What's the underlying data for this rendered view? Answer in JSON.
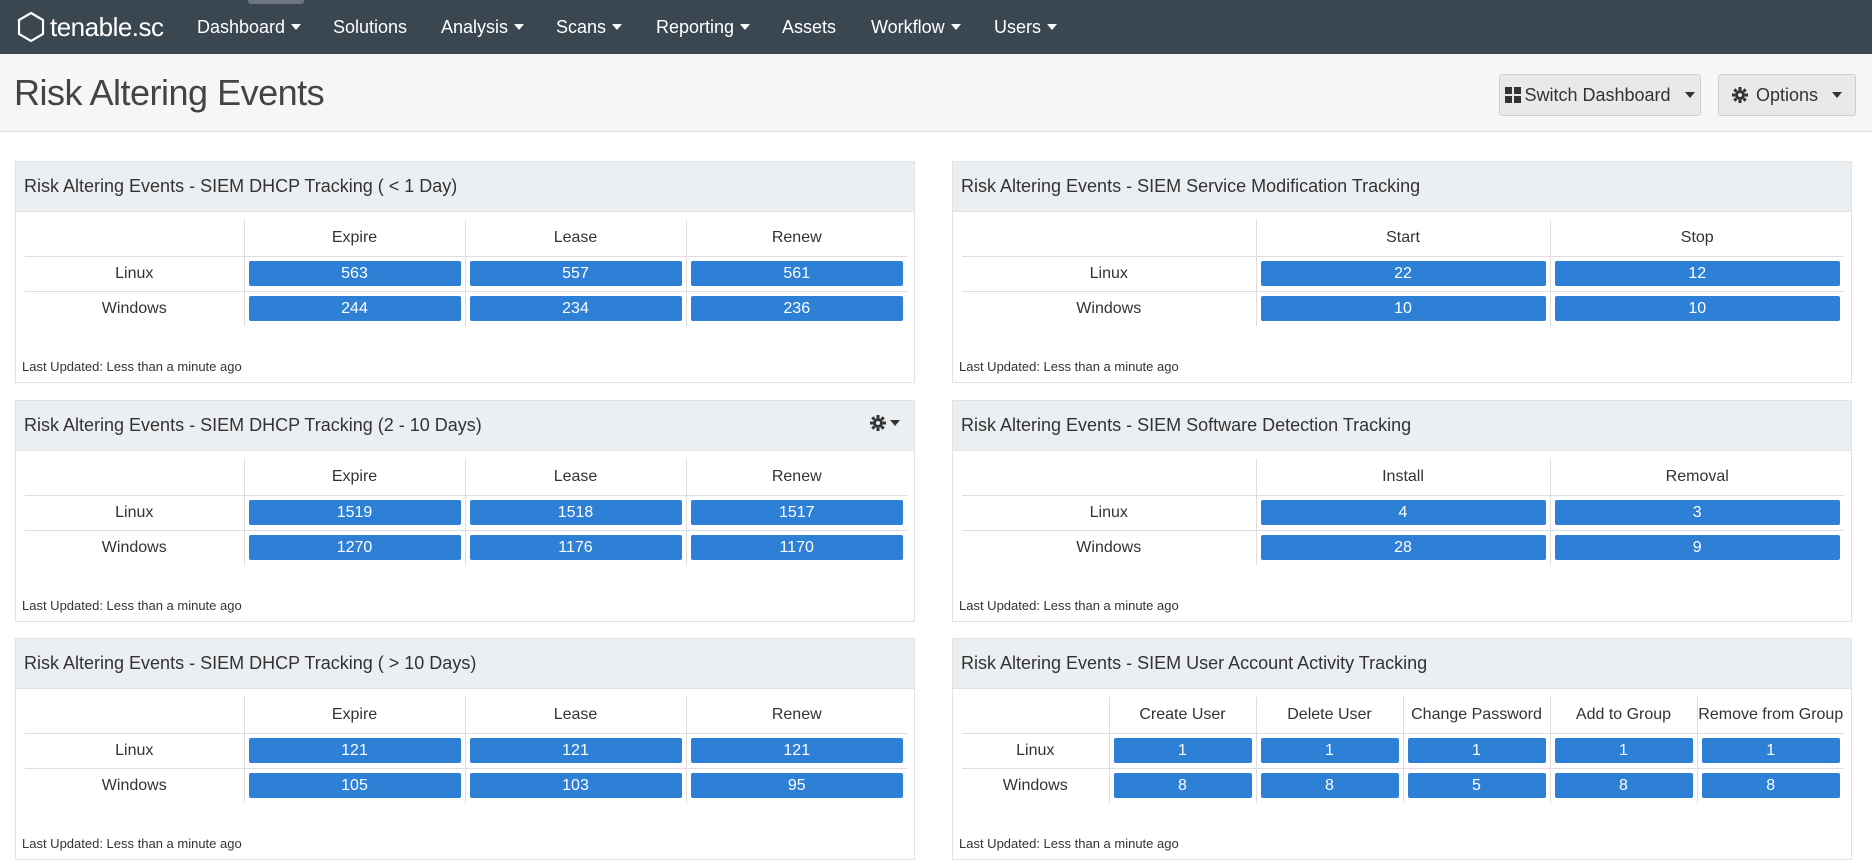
{
  "nav": {
    "logo_text": "tenable.sc",
    "items": [
      {
        "label": "Dashboard",
        "dropdown": true
      },
      {
        "label": "Solutions",
        "dropdown": false
      },
      {
        "label": "Analysis",
        "dropdown": true
      },
      {
        "label": "Scans",
        "dropdown": true
      },
      {
        "label": "Reporting",
        "dropdown": true
      },
      {
        "label": "Assets",
        "dropdown": false
      },
      {
        "label": "Workflow",
        "dropdown": true
      },
      {
        "label": "Users",
        "dropdown": true
      }
    ]
  },
  "header": {
    "title": "Risk Altering Events",
    "switch_label": "Switch Dashboard",
    "options_label": "Options"
  },
  "colors": {
    "navbar": "#3a4650",
    "value_button": "#2e7fd6",
    "panel_header": "#eceff1"
  },
  "panels": [
    {
      "title": "Risk Altering Events - SIEM DHCP Tracking ( < 1 Day)",
      "columns": [
        "Expire",
        "Lease",
        "Renew"
      ],
      "rows": [
        {
          "label": "Linux",
          "values": [
            "563",
            "557",
            "561"
          ]
        },
        {
          "label": "Windows",
          "values": [
            "244",
            "234",
            "236"
          ]
        }
      ],
      "updated": "Last Updated: Less than a minute ago"
    },
    {
      "title": "Risk Altering Events - SIEM Service Modification Tracking",
      "columns": [
        "Start",
        "Stop"
      ],
      "rows": [
        {
          "label": "Linux",
          "values": [
            "22",
            "12"
          ]
        },
        {
          "label": "Windows",
          "values": [
            "10",
            "10"
          ]
        }
      ],
      "updated": "Last Updated: Less than a minute ago"
    },
    {
      "title": "Risk Altering Events - SIEM DHCP Tracking (2 - 10 Days)",
      "columns": [
        "Expire",
        "Lease",
        "Renew"
      ],
      "rows": [
        {
          "label": "Linux",
          "values": [
            "1519",
            "1518",
            "1517"
          ]
        },
        {
          "label": "Windows",
          "values": [
            "1270",
            "1176",
            "1170"
          ]
        }
      ],
      "updated": "Last Updated: Less than a minute ago",
      "gear_icon": "gear-icon"
    },
    {
      "title": "Risk Altering Events - SIEM Software Detection Tracking",
      "columns": [
        "Install",
        "Removal"
      ],
      "rows": [
        {
          "label": "Linux",
          "values": [
            "4",
            "3"
          ]
        },
        {
          "label": "Windows",
          "values": [
            "28",
            "9"
          ]
        }
      ],
      "updated": "Last Updated: Less than a minute ago"
    },
    {
      "title": "Risk Altering Events - SIEM DHCP Tracking ( > 10 Days)",
      "columns": [
        "Expire",
        "Lease",
        "Renew"
      ],
      "rows": [
        {
          "label": "Linux",
          "values": [
            "121",
            "121",
            "121"
          ]
        },
        {
          "label": "Windows",
          "values": [
            "105",
            "103",
            "95"
          ]
        }
      ],
      "updated": "Last Updated: Less than a minute ago"
    },
    {
      "title": "Risk Altering Events - SIEM User Account Activity Tracking",
      "columns": [
        "Create User",
        "Delete User",
        "Change Password",
        "Add to Group",
        "Remove from Group"
      ],
      "rows": [
        {
          "label": "Linux",
          "values": [
            "1",
            "1",
            "1",
            "1",
            "1"
          ]
        },
        {
          "label": "Windows",
          "values": [
            "8",
            "8",
            "5",
            "8",
            "8"
          ]
        }
      ],
      "updated": "Last Updated: Less than a minute ago"
    }
  ]
}
